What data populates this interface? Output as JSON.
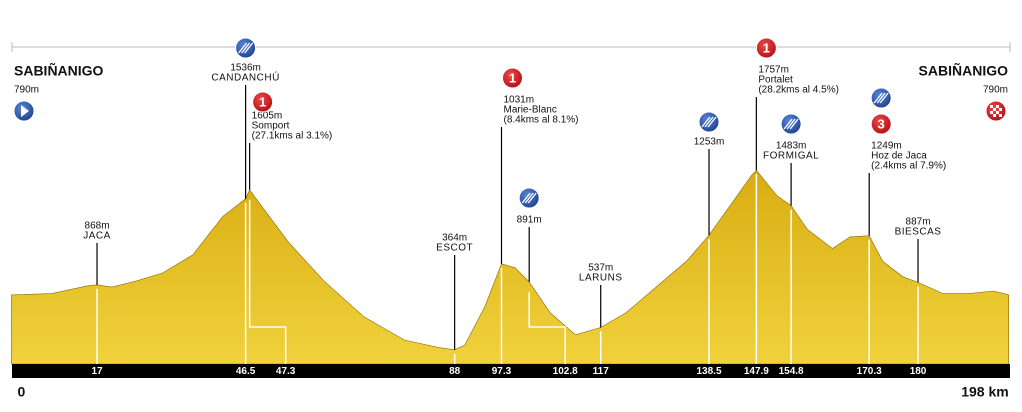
{
  "chart_data": {
    "type": "area",
    "color": "#e6c12b",
    "xlim": [
      0,
      198
    ],
    "ylim": [
      300,
      2000
    ],
    "xticks": [
      0,
      17,
      46.5,
      47.3,
      88,
      97.3,
      102.8,
      117,
      138.5,
      147.9,
      154.8,
      170.3,
      180,
      {
        "value": 198,
        "label": "198 km"
      }
    ],
    "x": [
      0,
      8,
      15,
      17,
      20,
      25,
      30,
      36,
      42,
      46.5,
      47.3,
      55,
      62,
      70,
      78,
      85,
      88,
      90,
      94,
      97.3,
      100,
      102.8,
      107,
      112,
      117,
      122,
      128,
      134,
      138.5,
      143,
      147,
      147.9,
      152,
      154.8,
      158,
      163,
      166.5,
      170.3,
      173,
      177,
      180,
      185,
      190,
      195,
      198
    ],
    "values": [
      790,
      800,
      860,
      868,
      850,
      900,
      960,
      1100,
      1400,
      1536,
      1605,
      1200,
      900,
      620,
      440,
      380,
      364,
      400,
      700,
      1031,
      1000,
      891,
      650,
      480,
      537,
      650,
      850,
      1050,
      1253,
      1500,
      1720,
      1757,
      1560,
      1483,
      1300,
      1150,
      1240,
      1249,
      1050,
      930,
      887,
      800,
      800,
      820,
      790
    ],
    "start": {
      "name": "SABIÑANIGO",
      "elevation": 790,
      "elevation_label": "790m"
    },
    "finish": {
      "name": "SABIÑANIGO",
      "elevation": 790,
      "elevation_label": "790m"
    },
    "waypoints": [
      {
        "km": 17,
        "elevation": 868,
        "elevation_label": "868m",
        "name": "JACA"
      },
      {
        "km": 46.5,
        "elevation": 1536,
        "elevation_label": "1536m",
        "name": "CANDANCHÚ",
        "icon": "sprint"
      },
      {
        "km": 47.3,
        "elevation": 1605,
        "elevation_label": "1605m",
        "name": "Somport",
        "detail": "(27.1kms al 3.1%)",
        "category": "1"
      },
      {
        "km": 88,
        "elevation": 364,
        "elevation_label": "364m",
        "name": "ESCOT"
      },
      {
        "km": 97.3,
        "elevation": 1031,
        "elevation_label": "1031m",
        "name": "Marie-Blanc",
        "detail": "(8.4kms al 8.1%)",
        "category": "1"
      },
      {
        "km": 102.8,
        "elevation": 891,
        "elevation_label": "891m",
        "icon": "sprint"
      },
      {
        "km": 117,
        "elevation": 537,
        "elevation_label": "537m",
        "name": "LARUNS"
      },
      {
        "km": 138.5,
        "elevation": 1253,
        "elevation_label": "1253m",
        "icon": "sprint"
      },
      {
        "km": 147.9,
        "elevation": 1757,
        "elevation_label": "1757m",
        "name": "Portalet",
        "detail": "(28.2kms al 4.5%)",
        "category": "1"
      },
      {
        "km": 154.8,
        "elevation": 1483,
        "elevation_label": "1483m",
        "name": "FORMIGAL",
        "icon": "sprint"
      },
      {
        "km": 170.3,
        "elevation": 1249,
        "elevation_label": "1249m",
        "name": "Hoz de Jaca",
        "detail": "(2.4kms al 7.9%)",
        "icon": "sprint",
        "category": "3"
      },
      {
        "km": 180,
        "elevation": 887,
        "elevation_label": "887m",
        "name": "BIESCAS"
      }
    ]
  }
}
